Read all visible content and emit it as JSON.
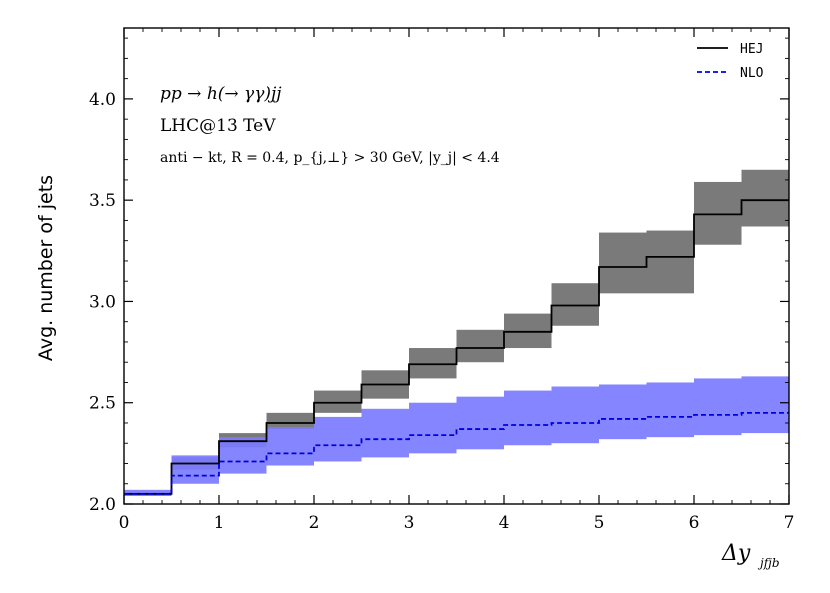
{
  "chart_data": {
    "type": "step",
    "xlabel": "Δy_{j_f j_b}",
    "xlabel_main": "Δy",
    "xlabel_sub": "jfjb",
    "ylabel": "Avg. number of jets",
    "xlim": [
      0,
      7
    ],
    "ylim": [
      2.0,
      4.35
    ],
    "x_ticks": [
      0,
      1,
      2,
      3,
      4,
      5,
      6,
      7
    ],
    "x_tick_labels": [
      "0",
      "1",
      "2",
      "3",
      "4",
      "5",
      "6",
      "7"
    ],
    "y_ticks": [
      2.0,
      2.5,
      3.0,
      3.5,
      4.0
    ],
    "y_tick_labels": [
      "2.0",
      "2.5",
      "3.0",
      "3.5",
      "4.0"
    ],
    "bin_edges": [
      0,
      0.5,
      1,
      1.5,
      2,
      2.5,
      3,
      3.5,
      4,
      4.5,
      5,
      5.5,
      6,
      6.5,
      7
    ],
    "annotations": {
      "process": "pp → h(→ γγ)jj",
      "collider": "LHC@13 TeV",
      "cuts": "anti − kt, R = 0.4, p_{j,⊥} > 30 GeV, |y_j| < 4.4"
    },
    "legend_position": "top-right",
    "series": [
      {
        "name": "HEJ",
        "line_color": "#000000",
        "band_color": "#7a7a7a",
        "line_style": "solid",
        "values": [
          2.05,
          2.2,
          2.31,
          2.4,
          2.5,
          2.59,
          2.69,
          2.77,
          2.85,
          2.98,
          3.17,
          3.22,
          3.43,
          3.5,
          3.5
        ],
        "band_low": [
          2.04,
          2.17,
          2.28,
          2.37,
          2.45,
          2.52,
          2.62,
          2.7,
          2.77,
          2.88,
          3.04,
          3.04,
          3.28,
          3.37,
          3.37
        ],
        "band_high": [
          2.06,
          2.23,
          2.35,
          2.45,
          2.56,
          2.66,
          2.77,
          2.86,
          2.94,
          3.09,
          3.34,
          3.35,
          3.59,
          3.65,
          3.65
        ]
      },
      {
        "name": "NLO",
        "line_color": "#0000dd",
        "band_color": "#7b7bff",
        "line_style": "dashed",
        "values": [
          2.05,
          2.14,
          2.21,
          2.25,
          2.29,
          2.32,
          2.34,
          2.37,
          2.39,
          2.4,
          2.42,
          2.43,
          2.44,
          2.45,
          2.45
        ],
        "band_low": [
          2.04,
          2.1,
          2.15,
          2.19,
          2.21,
          2.23,
          2.25,
          2.27,
          2.29,
          2.3,
          2.32,
          2.33,
          2.34,
          2.35,
          2.35
        ],
        "band_high": [
          2.07,
          2.24,
          2.33,
          2.38,
          2.43,
          2.47,
          2.5,
          2.53,
          2.56,
          2.58,
          2.59,
          2.6,
          2.62,
          2.63,
          2.63
        ]
      }
    ]
  }
}
